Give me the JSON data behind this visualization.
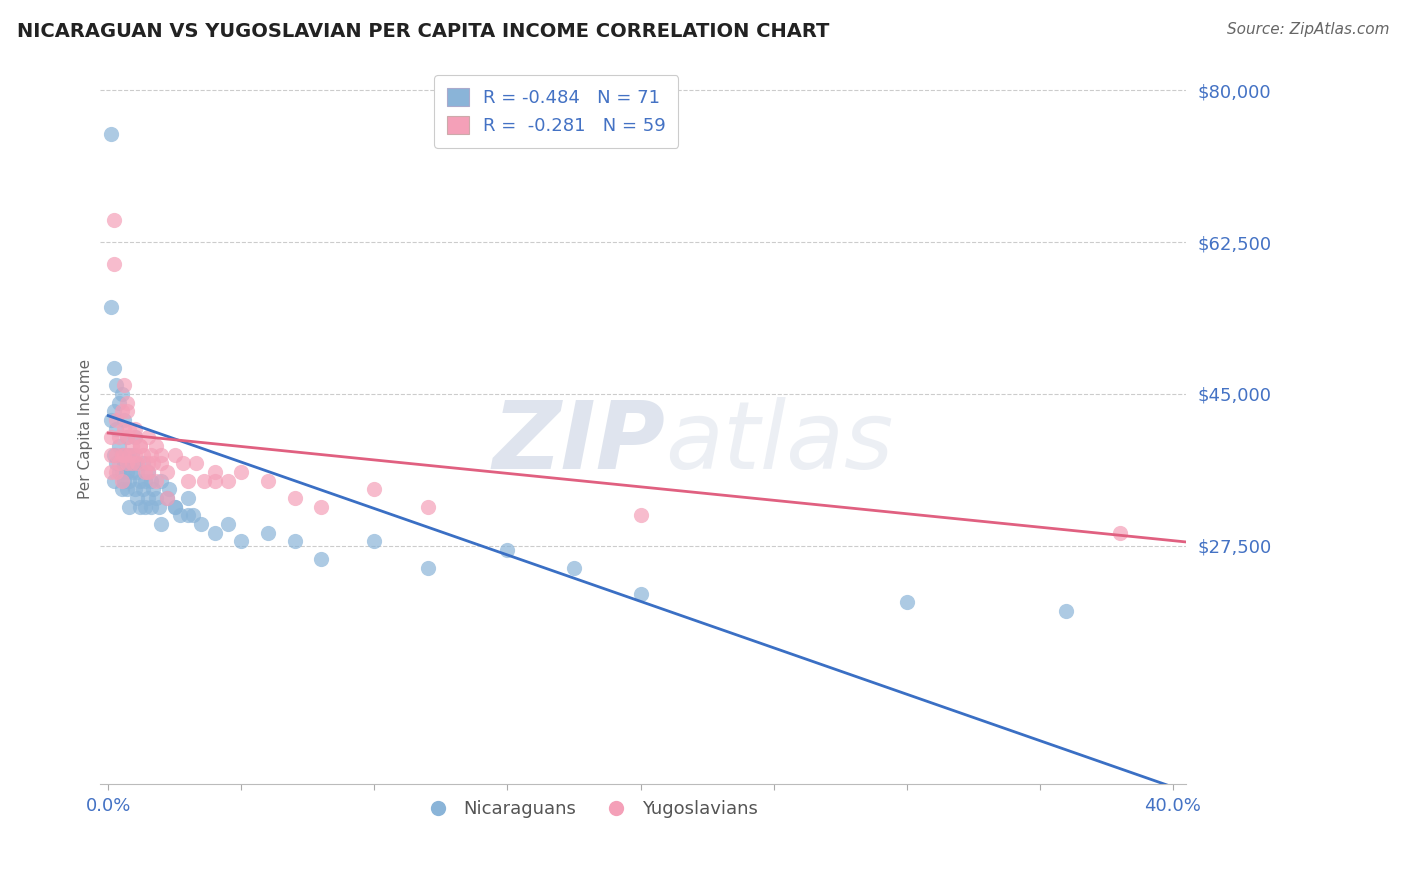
{
  "title": "NICARAGUAN VS YUGOSLAVIAN PER CAPITA INCOME CORRELATION CHART",
  "source": "Source: ZipAtlas.com",
  "ylabel": "Per Capita Income",
  "xlabel": "",
  "xlim": [
    -0.003,
    0.405
  ],
  "ylim": [
    0,
    82000
  ],
  "xticks": [
    0.0,
    0.05,
    0.1,
    0.15,
    0.2,
    0.25,
    0.3,
    0.35,
    0.4
  ],
  "xtick_labels": [
    "0.0%",
    "",
    "",
    "",
    "",
    "",
    "",
    "",
    "40.0%"
  ],
  "yticks": [
    27500,
    45000,
    62500,
    80000
  ],
  "ytick_labels": [
    "$27,500",
    "$45,000",
    "$62,500",
    "$80,000"
  ],
  "blue_color": "#8ab4d8",
  "pink_color": "#f4a0b8",
  "blue_line_color": "#3a6fc4",
  "pink_line_color": "#e06080",
  "axis_color": "#4472C4",
  "legend_label_1": "R = -0.484   N = 71",
  "legend_label_2": "R =  -0.281   N = 59",
  "watermark_1": "ZIP",
  "watermark_2": "atlas",
  "blue_intercept": 42500,
  "blue_slope": -107000,
  "pink_intercept": 40500,
  "pink_slope": -31000,
  "blue_x": [
    0.001,
    0.001,
    0.001,
    0.002,
    0.002,
    0.002,
    0.002,
    0.003,
    0.003,
    0.003,
    0.004,
    0.004,
    0.004,
    0.005,
    0.005,
    0.005,
    0.005,
    0.006,
    0.006,
    0.006,
    0.007,
    0.007,
    0.007,
    0.007,
    0.008,
    0.008,
    0.008,
    0.009,
    0.009,
    0.01,
    0.01,
    0.01,
    0.011,
    0.011,
    0.012,
    0.012,
    0.013,
    0.013,
    0.014,
    0.014,
    0.015,
    0.015,
    0.016,
    0.016,
    0.017,
    0.018,
    0.019,
    0.02,
    0.022,
    0.023,
    0.025,
    0.027,
    0.03,
    0.032,
    0.035,
    0.04,
    0.045,
    0.05,
    0.06,
    0.07,
    0.08,
    0.1,
    0.12,
    0.15,
    0.175,
    0.02,
    0.025,
    0.03,
    0.2,
    0.3,
    0.36
  ],
  "blue_y": [
    75000,
    55000,
    42000,
    48000,
    38000,
    35000,
    43000,
    46000,
    37000,
    41000,
    36000,
    44000,
    39000,
    38000,
    36000,
    34000,
    45000,
    37000,
    35000,
    42000,
    40000,
    36000,
    34000,
    38000,
    37000,
    35000,
    32000,
    38000,
    36000,
    40000,
    37000,
    34000,
    36000,
    33000,
    35000,
    32000,
    37000,
    34000,
    35000,
    32000,
    36000,
    33000,
    35000,
    32000,
    34000,
    33000,
    32000,
    35000,
    33000,
    34000,
    32000,
    31000,
    33000,
    31000,
    30000,
    29000,
    30000,
    28000,
    29000,
    28000,
    26000,
    28000,
    25000,
    27000,
    25000,
    30000,
    32000,
    31000,
    22000,
    21000,
    20000
  ],
  "pink_x": [
    0.001,
    0.001,
    0.001,
    0.002,
    0.002,
    0.003,
    0.003,
    0.003,
    0.004,
    0.004,
    0.005,
    0.005,
    0.005,
    0.006,
    0.006,
    0.007,
    0.007,
    0.007,
    0.008,
    0.008,
    0.009,
    0.009,
    0.01,
    0.01,
    0.011,
    0.012,
    0.013,
    0.014,
    0.015,
    0.016,
    0.017,
    0.018,
    0.02,
    0.022,
    0.025,
    0.028,
    0.03,
    0.033,
    0.036,
    0.04,
    0.045,
    0.05,
    0.06,
    0.07,
    0.08,
    0.1,
    0.12,
    0.01,
    0.012,
    0.015,
    0.018,
    0.022,
    0.006,
    0.007,
    0.02,
    0.04,
    0.2,
    0.38,
    0.015
  ],
  "pink_y": [
    40000,
    38000,
    36000,
    65000,
    60000,
    42000,
    38000,
    36000,
    40000,
    37000,
    43000,
    38000,
    35000,
    41000,
    38000,
    43000,
    40000,
    37000,
    41000,
    38000,
    39000,
    37000,
    40000,
    38000,
    37000,
    39000,
    38000,
    36000,
    40000,
    38000,
    37000,
    39000,
    38000,
    36000,
    38000,
    37000,
    35000,
    37000,
    35000,
    36000,
    35000,
    36000,
    35000,
    33000,
    32000,
    34000,
    32000,
    41000,
    39000,
    37000,
    35000,
    33000,
    46000,
    44000,
    37000,
    35000,
    31000,
    29000,
    36000
  ]
}
